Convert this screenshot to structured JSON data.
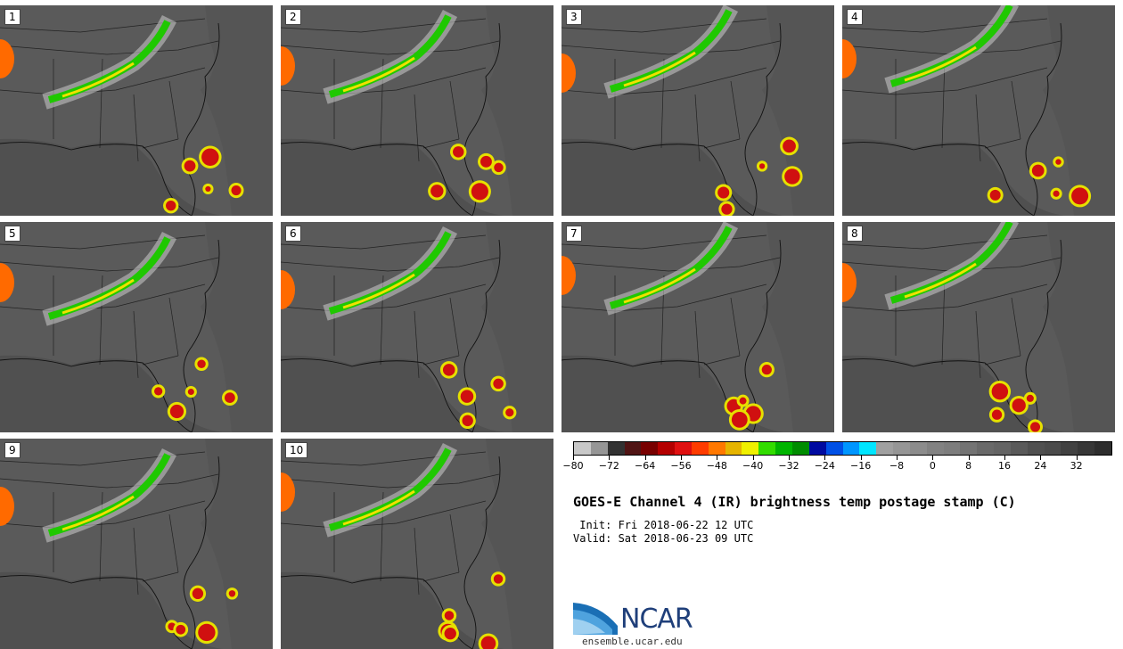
{
  "chart_data": {
    "type": "heatmap",
    "title": "GOES-E Channel 4 (IR) brightness temp postage stamp (C)",
    "init_label": " Init: Fri 2018-06-22 12 UTC",
    "valid_label": "Valid: Sat 2018-06-23 09 UTC",
    "panels": [
      "1",
      "2",
      "3",
      "4",
      "5",
      "6",
      "7",
      "8",
      "9",
      "10"
    ],
    "colorbar": {
      "range": [
        -80,
        40
      ],
      "tick_values": [
        -80,
        -72,
        -64,
        -56,
        -48,
        -40,
        -32,
        -24,
        -16,
        -8,
        0,
        8,
        16,
        24,
        32
      ],
      "tick_labels": [
        "−80",
        "−72",
        "−64",
        "−56",
        "−48",
        "−40",
        "−32",
        "−24",
        "−16",
        "−8",
        "0",
        "8",
        "16",
        "24",
        "32"
      ],
      "colors": [
        "#c8c8c8",
        "#969696",
        "#323232",
        "#501414",
        "#780000",
        "#b40000",
        "#e01010",
        "#ff3c00",
        "#ff7800",
        "#e6b400",
        "#f0f000",
        "#32dc00",
        "#00b400",
        "#008c00",
        "#000aa0",
        "#0050e6",
        "#0096ff",
        "#00e6ff",
        "#a0a0a0",
        "#969696",
        "#8c8c8c",
        "#828282",
        "#7d7d7d",
        "#737373",
        "#696969",
        "#646464",
        "#5a5a5a",
        "#505050",
        "#4b4b4b",
        "#414141",
        "#373737",
        "#2d2d2d"
      ]
    }
  },
  "branding": {
    "logo_text": "NCAR",
    "site": "ensemble.ucar.edu"
  }
}
